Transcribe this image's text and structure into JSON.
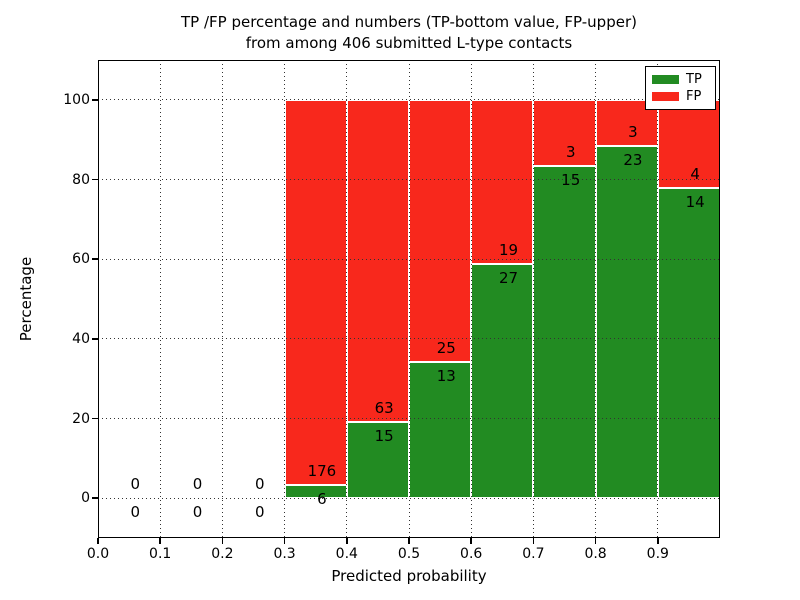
{
  "chart_data": {
    "type": "bar",
    "stacked": true,
    "stack_order": "TP bottom, FP top",
    "title_line1": "TP /FP percentage and numbers (TP-bottom value, FP-upper)",
    "title_line2": "from among 406 submitted L-type contacts",
    "title": "TP /FP percentage and numbers (TP-bottom value, FP-upper)\nfrom among 406 submitted L-type contacts",
    "xlabel": "Predicted probability",
    "ylabel": "Percentage",
    "xlim": [
      0.0,
      1.0
    ],
    "ylim": [
      -10,
      110
    ],
    "x_ticks": [
      "0.0",
      "0.1",
      "0.2",
      "0.3",
      "0.4",
      "0.5",
      "0.6",
      "0.7",
      "0.8",
      "0.9"
    ],
    "y_ticks": [
      "0",
      "20",
      "40",
      "60",
      "80",
      "100"
    ],
    "grid": "dotted",
    "colors": {
      "tp": "#228b22",
      "fp": "#f8281c",
      "grid": "#333333"
    },
    "legend": {
      "position": "upper right",
      "entries": [
        {
          "label": "TP",
          "color": "#228b22"
        },
        {
          "label": "FP",
          "color": "#f8281c"
        }
      ]
    },
    "bins": [
      {
        "x_start": 0.0,
        "x_end": 0.1,
        "tp_count": 0,
        "fp_count": 0,
        "has_bar": false
      },
      {
        "x_start": 0.1,
        "x_end": 0.2,
        "tp_count": 0,
        "fp_count": 0,
        "has_bar": false
      },
      {
        "x_start": 0.2,
        "x_end": 0.3,
        "tp_count": 0,
        "fp_count": 0,
        "has_bar": false
      },
      {
        "x_start": 0.3,
        "x_end": 0.4,
        "tp_count": 6,
        "fp_count": 176,
        "tp_pct": 3.3,
        "has_bar": true
      },
      {
        "x_start": 0.4,
        "x_end": 0.5,
        "tp_count": 15,
        "fp_count": 63,
        "tp_pct": 19.2,
        "has_bar": true
      },
      {
        "x_start": 0.5,
        "x_end": 0.6,
        "tp_count": 13,
        "fp_count": 25,
        "tp_pct": 34.2,
        "has_bar": true
      },
      {
        "x_start": 0.6,
        "x_end": 0.7,
        "tp_count": 27,
        "fp_count": 19,
        "tp_pct": 58.7,
        "has_bar": true
      },
      {
        "x_start": 0.7,
        "x_end": 0.8,
        "tp_count": 15,
        "fp_count": 3,
        "tp_pct": 83.3,
        "has_bar": true
      },
      {
        "x_start": 0.8,
        "x_end": 0.9,
        "tp_count": 23,
        "fp_count": 3,
        "tp_pct": 88.5,
        "has_bar": true
      },
      {
        "x_start": 0.9,
        "x_end": 1.0,
        "tp_count": 14,
        "fp_count": 4,
        "tp_pct": 77.8,
        "has_bar": true
      }
    ]
  }
}
